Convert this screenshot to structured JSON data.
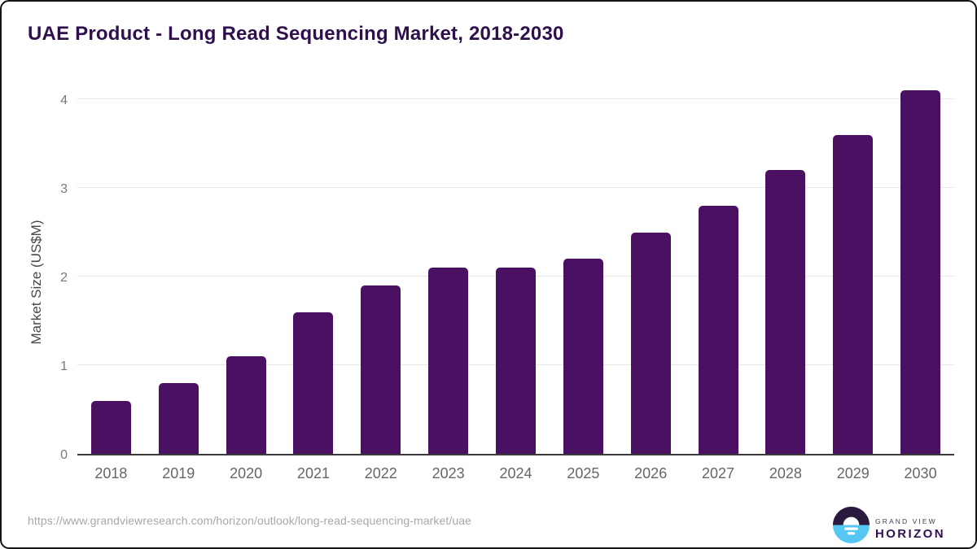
{
  "chart_data": {
    "type": "bar",
    "title": "UAE Product - Long Read Sequencing Market, 2018-2030",
    "categories": [
      "2018",
      "2019",
      "2020",
      "2021",
      "2022",
      "2023",
      "2024",
      "2025",
      "2026",
      "2027",
      "2028",
      "2029",
      "2030"
    ],
    "values": [
      0.6,
      0.8,
      1.1,
      1.6,
      1.9,
      2.1,
      2.1,
      2.2,
      2.5,
      2.8,
      3.2,
      3.6,
      4.1
    ],
    "xlabel": "",
    "ylabel": "Market Size (US$M)",
    "ylim": [
      0,
      4
    ],
    "yticks": [
      0,
      1,
      2,
      3,
      4
    ],
    "grid": true,
    "legend": "none"
  },
  "colors": {
    "bar": "#4a1162",
    "title": "#2f0f4d",
    "gridline": "#e7e7e7",
    "axis_line": "#3a3a3a",
    "logo_dark_half": "#2a1b3e",
    "logo_blue_half": "#56c6f2"
  },
  "footer": {
    "source_url": "https://www.grandviewresearch.com/horizon/outlook/long-read-sequencing-market/uae",
    "logo": {
      "top_text": "GRAND VIEW",
      "bottom_text": "HORIZON"
    }
  }
}
